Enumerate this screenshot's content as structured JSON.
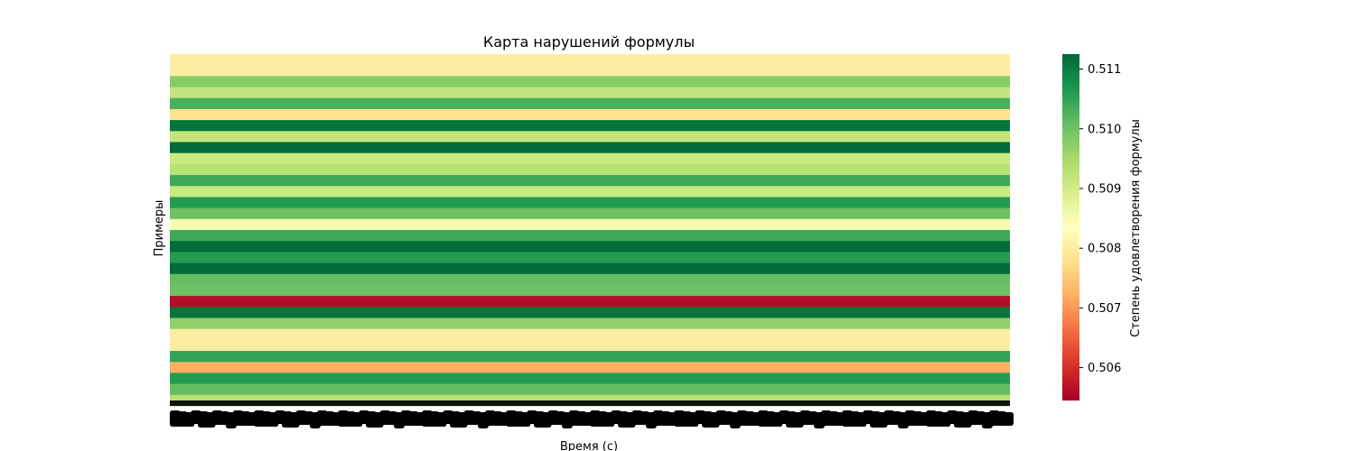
{
  "chart_data": {
    "type": "heatmap",
    "title": "Карта нарушений формулы",
    "xlabel": "Время (с)",
    "ylabel": "Примеры",
    "colorbar": {
      "label": "Степень удовлетворения формулы",
      "range": [
        0.50545,
        0.51125
      ],
      "ticks": [
        0.506,
        0.507,
        0.508,
        0.509,
        0.51,
        0.511
      ],
      "tick_labels": [
        "0.506",
        "0.507",
        "0.508",
        "0.509",
        "0.510",
        "0.511"
      ],
      "colormap": "RdYlGn"
    },
    "row_values": [
      0.508,
      0.508,
      0.5098,
      0.5092,
      0.5103,
      0.5078,
      0.5111,
      0.5092,
      0.5112,
      0.5091,
      0.5093,
      0.5104,
      0.5091,
      0.5106,
      0.51,
      0.5085,
      0.5104,
      0.5112,
      0.5106,
      0.5112,
      0.5101,
      0.51,
      0.5056,
      0.5111,
      0.5097,
      0.508,
      0.508,
      0.5105,
      0.5072,
      0.5106,
      0.5101,
      0.5093
    ],
    "note_columns": "values constant across all time columns"
  }
}
